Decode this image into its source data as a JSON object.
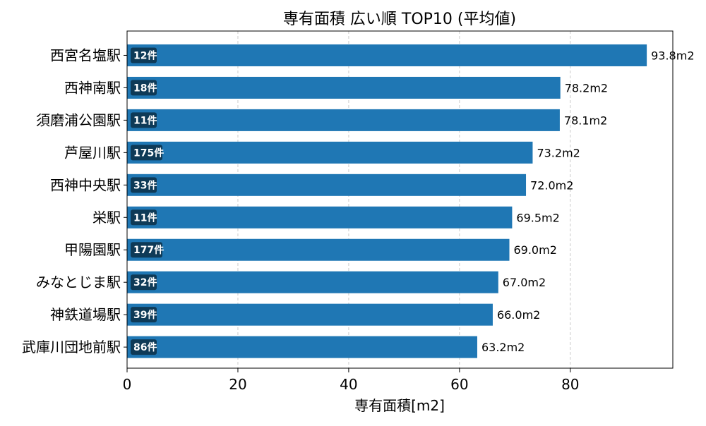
{
  "chart_data": {
    "type": "bar",
    "orientation": "horizontal",
    "title": "専有面積 広い順 TOP10 (平均値)",
    "xlabel": "専有面積[m2]",
    "ylabel": "",
    "xlim": [
      0,
      98.5
    ],
    "xticks": [
      0,
      20,
      40,
      60,
      80
    ],
    "xtick_labels": [
      "0",
      "20",
      "40",
      "60",
      "80"
    ],
    "grid": "x-dashed",
    "categories": [
      "西宮名塩駅",
      "西神南駅",
      "須磨浦公園駅",
      "芦屋川駅",
      "西神中央駅",
      "栄駅",
      "甲陽園駅",
      "みなとじま駅",
      "神鉄道場駅",
      "武庫川団地前駅"
    ],
    "values": [
      93.8,
      78.2,
      78.1,
      73.2,
      72.0,
      69.5,
      69.0,
      67.0,
      66.0,
      63.2
    ],
    "value_labels": [
      "93.8m2",
      "78.2m2",
      "78.1m2",
      "73.2m2",
      "72.0m2",
      "69.5m2",
      "69.0m2",
      "67.0m2",
      "66.0m2",
      "63.2m2"
    ],
    "counts": [
      "12件",
      "18件",
      "11件",
      "175件",
      "33件",
      "11件",
      "177件",
      "32件",
      "39件",
      "86件"
    ],
    "colors": {
      "bar": "#1f77b4",
      "badge": "#0e3a57",
      "grid": "#cccccc",
      "axis": "#000000"
    }
  }
}
